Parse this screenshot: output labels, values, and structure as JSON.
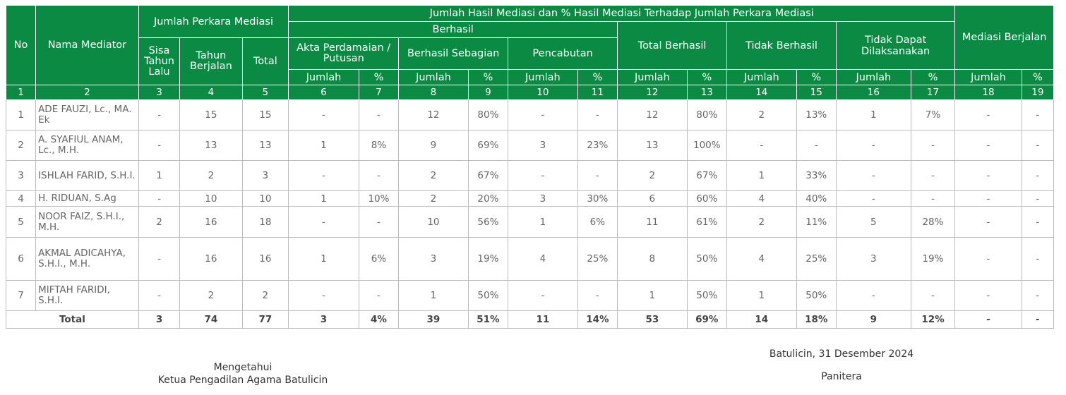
{
  "header": {
    "no": "No",
    "nama": "Nama Mediator",
    "jumlah_perkara": "Jumlah Perkara Mediasi",
    "sisa": "Sisa Tahun Lalu",
    "tahun_berjalan": "Tahun Berjalan",
    "total": "Total",
    "hasil": "Jumlah Hasil Mediasi dan % Hasil Mediasi Terhadap Jumlah Perkara Mediasi",
    "berhasil": "Berhasil",
    "akta": "Akta Perdamaian / Putusan",
    "berhasil_sebagian": "Berhasil Sebagian",
    "pencabutan": "Pencabutan",
    "total_berhasil": "Total Berhasil",
    "tidak_berhasil": "Tidak Berhasil",
    "tidak_dapat": "Tidak Dapat Dilaksanakan",
    "mediasi_berjalan": "Mediasi Berjalan",
    "jumlah": "Jumlah",
    "persen": "%"
  },
  "column_numbers": [
    "1",
    "2",
    "3",
    "4",
    "5",
    "6",
    "7",
    "8",
    "9",
    "10",
    "11",
    "12",
    "13",
    "14",
    "15",
    "16",
    "17",
    "18",
    "19"
  ],
  "rows": [
    [
      "1",
      "ADE FAUZI, Lc., MA. Ek",
      "-",
      "15",
      "15",
      "-",
      "-",
      "12",
      "80%",
      "-",
      "-",
      "12",
      "80%",
      "2",
      "13%",
      "1",
      "7%",
      "-",
      "-"
    ],
    [
      "2",
      "A. SYAFIUL ANAM, Lc., M.H.",
      "-",
      "13",
      "13",
      "1",
      "8%",
      "9",
      "69%",
      "3",
      "23%",
      "13",
      "100%",
      "-",
      "-",
      "-",
      "-",
      "-",
      "-"
    ],
    [
      "3",
      "ISHLAH FARID, S.H.I.",
      "1",
      "2",
      "3",
      "-",
      "-",
      "2",
      "67%",
      "-",
      "-",
      "2",
      "67%",
      "1",
      "33%",
      "-",
      "-",
      "-",
      "-"
    ],
    [
      "4",
      "H. RIDUAN, S.Ag",
      "-",
      "10",
      "10",
      "1",
      "10%",
      "2",
      "20%",
      "3",
      "30%",
      "6",
      "60%",
      "4",
      "40%",
      "-",
      "-",
      "-",
      "-"
    ],
    [
      "5",
      "NOOR FAIZ, S.H.I., M.H.",
      "2",
      "16",
      "18",
      "-",
      "-",
      "10",
      "56%",
      "1",
      "6%",
      "11",
      "61%",
      "2",
      "11%",
      "5",
      "28%",
      "-",
      "-"
    ],
    [
      "6",
      "AKMAL ADICAHYA, S.H.I., M.H.",
      "-",
      "16",
      "16",
      "1",
      "6%",
      "3",
      "19%",
      "4",
      "25%",
      "8",
      "50%",
      "4",
      "25%",
      "3",
      "19%",
      "-",
      "-"
    ],
    [
      "7",
      "MIFTAH FARIDI, S.H.I.",
      "-",
      "2",
      "2",
      "-",
      "-",
      "1",
      "50%",
      "-",
      "-",
      "1",
      "50%",
      "1",
      "50%",
      "-",
      "-",
      "-",
      "-"
    ]
  ],
  "total_row": {
    "label": "Total",
    "values": [
      "3",
      "74",
      "77",
      "3",
      "4%",
      "39",
      "51%",
      "11",
      "14%",
      "53",
      "69%",
      "14",
      "18%",
      "9",
      "12%",
      "-",
      "-"
    ]
  },
  "signature": {
    "left_line1": "Mengetahui",
    "left_line2": "Ketua Pengadilan Agama Batulicin",
    "right_line1": "Batulicin, 31 Desember 2024",
    "right_line2": "Panitera"
  },
  "colors": {
    "header_bg": "#0b8a43",
    "header_text": "#ffffff",
    "border": "#bdbdbd"
  }
}
